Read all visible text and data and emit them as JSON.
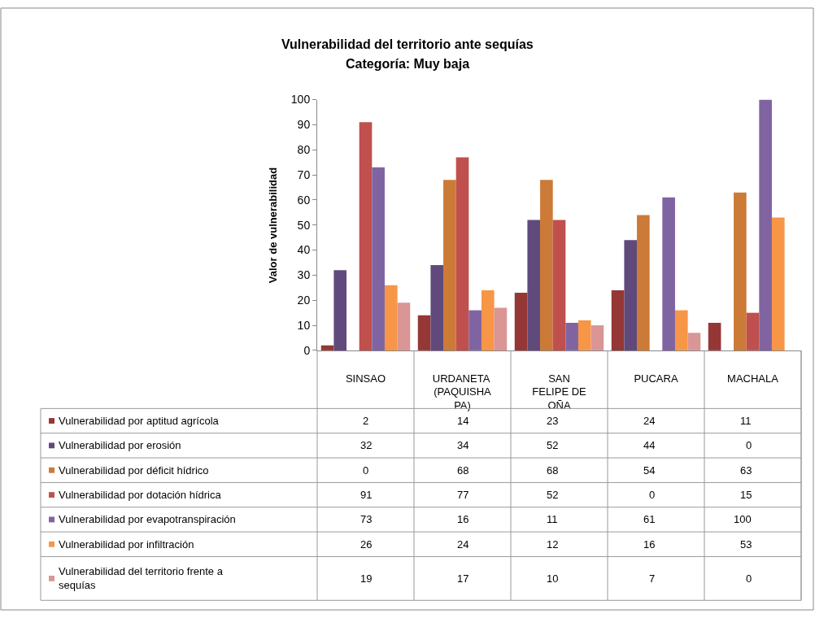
{
  "chart_data": {
    "type": "bar",
    "title": "Vulnerabilidad del territorio ante sequías",
    "subtitle": "Categoría: Muy baja",
    "ylabel": "Valor de vulnerabilidad",
    "categories": [
      "SINSAO",
      "URDANETA (PAQUISHAPA)",
      "SAN FELIPE DE OÑA",
      "PUCARA",
      "MACHALA"
    ],
    "series": [
      {
        "name": "Vulnerabilidad por aptitud agrícola",
        "color": "#953735",
        "values": [
          2,
          14,
          23,
          24,
          11
        ]
      },
      {
        "name": "Vulnerabilidad por erosión",
        "color": "#604a7b",
        "values": [
          32,
          34,
          52,
          44,
          0
        ]
      },
      {
        "name": "Vulnerabilidad por déficit hídrico",
        "color": "#cc7a37",
        "values": [
          0,
          68,
          68,
          54,
          63
        ]
      },
      {
        "name": "Vulnerabilidad por dotación hídrica",
        "color": "#c0504d",
        "values": [
          91,
          77,
          52,
          0,
          15
        ]
      },
      {
        "name": "Vulnerabilidad por evapotranspiración",
        "color": "#8064a2",
        "values": [
          73,
          16,
          11,
          61,
          100
        ]
      },
      {
        "name": "Vulnerabilidad por infiltración",
        "color": "#f79646",
        "values": [
          26,
          24,
          12,
          16,
          53
        ]
      },
      {
        "name": "Vulnerabilidad del territorio frente a sequías",
        "color": "#d99694",
        "values": [
          19,
          17,
          10,
          7,
          0
        ]
      }
    ],
    "ylim": [
      0,
      100
    ],
    "yticks": [
      0,
      10,
      20,
      30,
      40,
      50,
      60,
      70,
      80,
      90,
      100
    ],
    "data_labels": true,
    "legend": "bottom left"
  }
}
